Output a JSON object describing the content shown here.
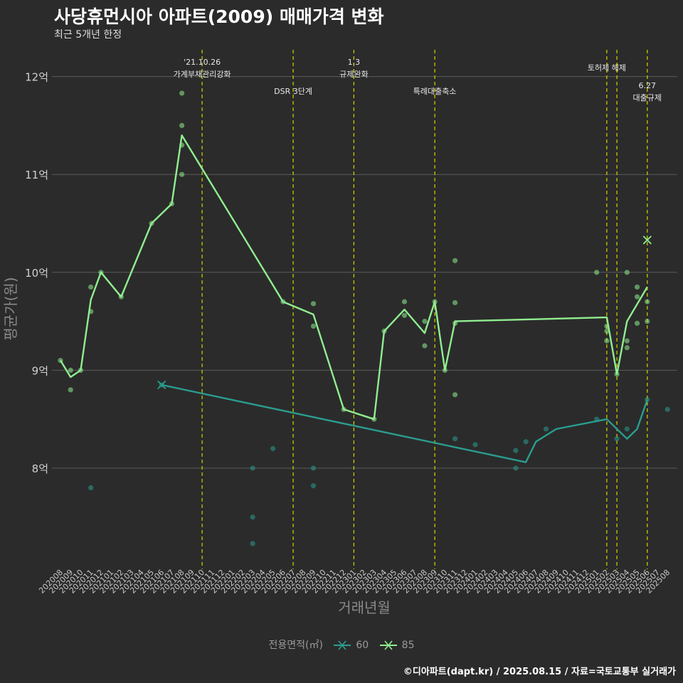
{
  "header": {
    "title": "사당휴먼시아 아파트(2009) 매매가격 변화",
    "subtitle": "최근 5개년 한정"
  },
  "caption": "©디아파트(dapt.kr) / 2025.08.15 / 자료=국토교통부 실거래가",
  "colors": {
    "s60": "#2a9d8f",
    "s85": "#90ee90",
    "events": "#d4d400",
    "grid": "#5a5a5a",
    "background": "#2b2b2b"
  },
  "chart_data": {
    "type": "line",
    "title": "사당휴먼시아 아파트(2009) 매매가격 변화",
    "subtitle": "최근 5개년 한정",
    "xlabel": "거래년월",
    "ylabel": "평균가(원)",
    "x_categories": [
      "202008",
      "202009",
      "202010",
      "202011",
      "202012",
      "202101",
      "202102",
      "202103",
      "202104",
      "202105",
      "202106",
      "202107",
      "202108",
      "202109",
      "202110",
      "202111",
      "202112",
      "202201",
      "202202",
      "202203",
      "202204",
      "202205",
      "202206",
      "202207",
      "202208",
      "202209",
      "202210",
      "202211",
      "202212",
      "202301",
      "202302",
      "202303",
      "202304",
      "202305",
      "202306",
      "202307",
      "202308",
      "202309",
      "202310",
      "202311",
      "202312",
      "202401",
      "202402",
      "202403",
      "202404",
      "202405",
      "202406",
      "202407",
      "202408",
      "202409",
      "202410",
      "202411",
      "202412",
      "202501",
      "202502",
      "202503",
      "202504",
      "202505",
      "202506",
      "202507",
      "202508"
    ],
    "y_ticks": [
      {
        "value": 8.0,
        "label": "8억"
      },
      {
        "value": 9.0,
        "label": "9억"
      },
      {
        "value": 10.0,
        "label": "10억"
      },
      {
        "value": 11.0,
        "label": "11억"
      },
      {
        "value": 12.0,
        "label": "12억"
      }
    ],
    "ylim": [
      7.0,
      12.3
    ],
    "y_unit": "억",
    "legend": {
      "title": "전용면적(㎡)",
      "position": "bottom"
    },
    "series": [
      {
        "name": "60",
        "color": "#2a9d8f",
        "line": [
          [
            "202106",
            8.85
          ],
          [
            "202406",
            8.06
          ],
          [
            "202407",
            8.27
          ],
          [
            "202409",
            8.4
          ],
          [
            "202502",
            8.5
          ],
          [
            "202504",
            8.3
          ],
          [
            "202505",
            8.4
          ],
          [
            "202506",
            8.7
          ]
        ],
        "points": [
          [
            "202011",
            7.8
          ],
          [
            "202106",
            8.85
          ],
          [
            "202203",
            8.0
          ],
          [
            "202203",
            7.5
          ],
          [
            "202203",
            7.23
          ],
          [
            "202205",
            8.2
          ],
          [
            "202209",
            8.0
          ],
          [
            "202209",
            7.82
          ],
          [
            "202311",
            8.3
          ],
          [
            "202401",
            8.24
          ],
          [
            "202405",
            8.18
          ],
          [
            "202405",
            8.0
          ],
          [
            "202406",
            8.27
          ],
          [
            "202408",
            8.4
          ],
          [
            "202501",
            8.5
          ],
          [
            "202503",
            8.3
          ],
          [
            "202504",
            8.4
          ],
          [
            "202506",
            8.7
          ],
          [
            "202508",
            8.6
          ]
        ],
        "crosses": [
          [
            "202106",
            8.85
          ]
        ]
      },
      {
        "name": "85",
        "color": "#90ee90",
        "line": [
          [
            "202008",
            9.1
          ],
          [
            "202009",
            8.93
          ],
          [
            "202010",
            9.0
          ],
          [
            "202011",
            9.72
          ],
          [
            "202012",
            10.0
          ],
          [
            "202102",
            9.75
          ],
          [
            "202105",
            10.5
          ],
          [
            "202107",
            10.7
          ],
          [
            "202108",
            11.4
          ],
          [
            "202206",
            9.7
          ],
          [
            "202209",
            9.57
          ],
          [
            "202212",
            8.6
          ],
          [
            "202303",
            8.5
          ],
          [
            "202304",
            9.4
          ],
          [
            "202306",
            9.62
          ],
          [
            "202308",
            9.38
          ],
          [
            "202309",
            9.7
          ],
          [
            "202310",
            9.0
          ],
          [
            "202311",
            9.5
          ],
          [
            "202502",
            9.54
          ],
          [
            "202503",
            8.96
          ],
          [
            "202504",
            9.5
          ],
          [
            "202506",
            9.85
          ]
        ],
        "points": [
          [
            "202008",
            9.1
          ],
          [
            "202009",
            9.0
          ],
          [
            "202009",
            8.8
          ],
          [
            "202010",
            9.0
          ],
          [
            "202011",
            9.85
          ],
          [
            "202011",
            9.6
          ],
          [
            "202012",
            10.0
          ],
          [
            "202102",
            9.75
          ],
          [
            "202105",
            10.5
          ],
          [
            "202107",
            10.7
          ],
          [
            "202108",
            11.83
          ],
          [
            "202108",
            11.5
          ],
          [
            "202108",
            11.3
          ],
          [
            "202108",
            11.0
          ],
          [
            "202206",
            9.7
          ],
          [
            "202209",
            9.68
          ],
          [
            "202209",
            9.45
          ],
          [
            "202212",
            8.6
          ],
          [
            "202303",
            8.5
          ],
          [
            "202304",
            9.4
          ],
          [
            "202306",
            9.7
          ],
          [
            "202306",
            9.56
          ],
          [
            "202308",
            9.5
          ],
          [
            "202308",
            9.25
          ],
          [
            "202309",
            9.7
          ],
          [
            "202310",
            9.0
          ],
          [
            "202311",
            10.12
          ],
          [
            "202311",
            9.69
          ],
          [
            "202311",
            9.48
          ],
          [
            "202311",
            8.75
          ],
          [
            "202501",
            10.0
          ],
          [
            "202502",
            9.45
          ],
          [
            "202502",
            9.4
          ],
          [
            "202502",
            9.3
          ],
          [
            "202503",
            8.96
          ],
          [
            "202504",
            10.0
          ],
          [
            "202504",
            9.3
          ],
          [
            "202504",
            9.23
          ],
          [
            "202505",
            9.85
          ],
          [
            "202505",
            9.75
          ],
          [
            "202505",
            9.48
          ],
          [
            "202506",
            9.7
          ],
          [
            "202506",
            9.5
          ]
        ],
        "crosses": [
          [
            "202506",
            10.33
          ]
        ]
      }
    ],
    "events": [
      {
        "x": "202110",
        "lines": [
          "'21.10.26",
          "가계부채관리강화"
        ],
        "row": 0
      },
      {
        "x": "202207",
        "lines": [
          "DSR 3단계"
        ],
        "row": 1
      },
      {
        "x": "202301",
        "lines": [
          "1.3",
          "규제완화"
        ],
        "row": 0
      },
      {
        "x": "202309",
        "lines": [
          "특례대출축소"
        ],
        "row": 1
      },
      {
        "x": "202502",
        "lines": [
          "토허제 해제"
        ],
        "row": 2
      },
      {
        "x": "202503",
        "lines": [],
        "row": 2
      },
      {
        "x": "202506",
        "lines": [
          "6.27",
          "대출규제"
        ],
        "row": 3
      }
    ]
  }
}
